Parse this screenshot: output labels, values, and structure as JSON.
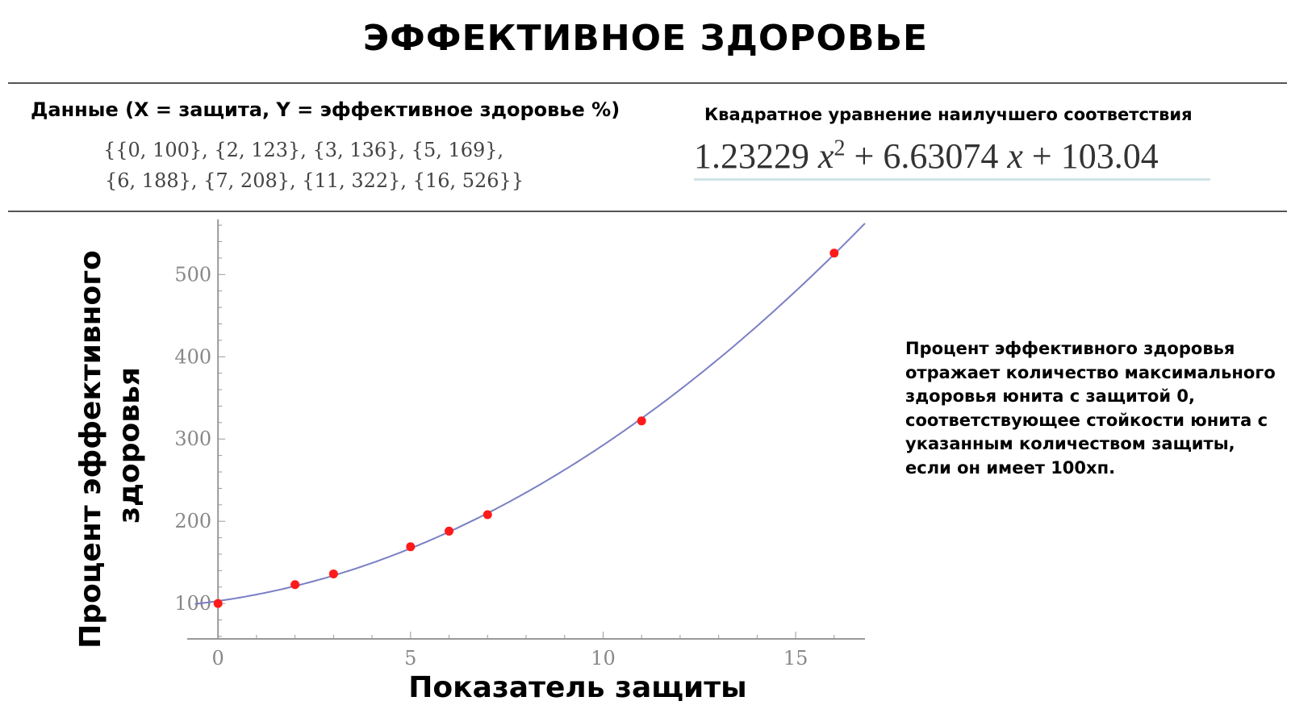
{
  "title": "ЭФФЕКТИВНОЕ ЗДОРОВЬЕ",
  "data_section": {
    "heading": "Данные (X = защита, Y = эффективное здоровье %)",
    "points_line1": "{{0, 100}, {2, 123}, {3, 136}, {5, 169},",
    "points_line2": "{6, 188}, {7, 208}, {11, 322}, {16, 526}}"
  },
  "fit_section": {
    "heading": "Квадратное уравнение наилучшего соответствия",
    "coef_a": "1.23229",
    "var_x": "x",
    "exp": "2",
    "plus1": "+",
    "coef_b": "6.63074",
    "plus2": "+",
    "coef_c": "103.04"
  },
  "note": "Процент эффективного здоровья отражает количество максимального здоровья юнита с защитой 0, соответствующее стойкости юнита с указанным количеством защиты, если он имеет 100хп.",
  "chart_data": {
    "type": "scatter",
    "xlabel": "Показатель защиты",
    "ylabel_line1": "Процент эффективного",
    "ylabel_line2": "здоровья",
    "xlim": [
      -0.8,
      16.8
    ],
    "ylim": [
      57,
      567
    ],
    "xticks": [
      0,
      5,
      10,
      15
    ],
    "yticks": [
      100,
      200,
      300,
      400,
      500
    ],
    "grid": false,
    "points": [
      [
        0,
        100
      ],
      [
        2,
        123
      ],
      [
        3,
        136
      ],
      [
        5,
        169
      ],
      [
        6,
        188
      ],
      [
        7,
        208
      ],
      [
        11,
        322
      ],
      [
        16,
        526
      ]
    ],
    "fit": {
      "a": 1.23229,
      "b": 6.63074,
      "c": 103.04
    },
    "colors": {
      "points": "#ff1a1a",
      "fit": "#7b7fc4",
      "axis": "#999999"
    }
  }
}
